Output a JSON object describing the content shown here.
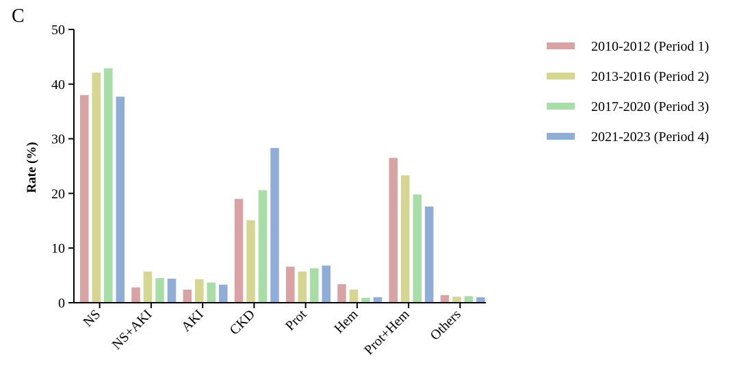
{
  "panel_label": "C",
  "chart_data": {
    "type": "bar",
    "ylabel": "Rate (%)",
    "ylim": [
      0,
      50
    ],
    "yticks": [
      0,
      10,
      20,
      30,
      40,
      50
    ],
    "grid": false,
    "legend_position": "top-right",
    "categories": [
      "NS",
      "NS+AKI",
      "AKI",
      "CKD",
      "Prot",
      "Hem",
      "Prot+Hem",
      "Others"
    ],
    "series": [
      {
        "name": "2010-2012 (Period 1)",
        "color": "#d9a3a3",
        "values": [
          38.0,
          2.8,
          2.4,
          19.0,
          6.6,
          3.4,
          26.5,
          1.4
        ]
      },
      {
        "name": "2013-2016 (Period 2)",
        "color": "#d5d68f",
        "values": [
          42.1,
          5.7,
          4.3,
          15.1,
          5.7,
          2.4,
          23.3,
          1.1
        ]
      },
      {
        "name": "2017-2020 (Period 3)",
        "color": "#a6dea6",
        "values": [
          42.9,
          4.5,
          3.7,
          20.6,
          6.3,
          0.9,
          19.8,
          1.2
        ]
      },
      {
        "name": "2021-2023 (Period 4)",
        "color": "#8fadd9",
        "values": [
          37.7,
          4.4,
          3.3,
          28.3,
          6.8,
          1.0,
          17.6,
          1.0
        ]
      }
    ]
  }
}
